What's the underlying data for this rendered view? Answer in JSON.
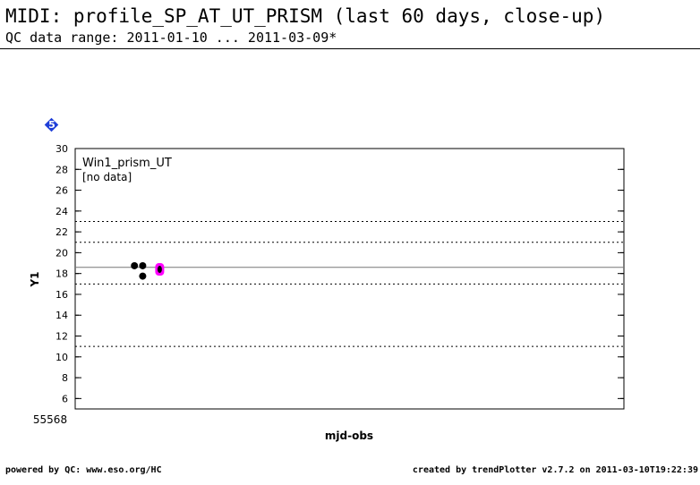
{
  "header": {
    "title": "MIDI: profile_SP_AT_UT_PRISM (last 60 days, close-up)",
    "subtitle": "QC data range: 2011-01-10 ... 2011-03-09*"
  },
  "badge": {
    "number": "5",
    "color": "#1f3fd8"
  },
  "footer": {
    "left": "powered by QC: www.eso.org/HC",
    "right": "created by trendPlotter v2.7.2 on 2011-03-10T19:22:39"
  },
  "chart_data": {
    "type": "scatter",
    "panel_label": "Win1_prism_UT",
    "panel_note": "[no data]",
    "xlabel": "mjd-obs",
    "ylabel": "Y1",
    "x_tick_label": "55568",
    "ylim": [
      5,
      30
    ],
    "yticks": [
      6,
      8,
      10,
      12,
      14,
      16,
      18,
      20,
      22,
      24,
      26,
      28,
      30
    ],
    "xlim_fraction_note": "",
    "reference_lines": {
      "solid": [
        18.6
      ],
      "dotted": [
        23.0,
        21.0,
        17.0,
        11.0
      ]
    },
    "series": [
      {
        "points": [
          {
            "x": 0.108,
            "y": 18.75
          },
          {
            "x": 0.123,
            "y": 18.75
          },
          {
            "x": 0.123,
            "y": 17.75
          }
        ],
        "color": "#000000"
      },
      {
        "highlight": true,
        "points": [
          {
            "x": 0.154,
            "y": 18.4
          }
        ],
        "color": "#ff00ff"
      }
    ]
  }
}
